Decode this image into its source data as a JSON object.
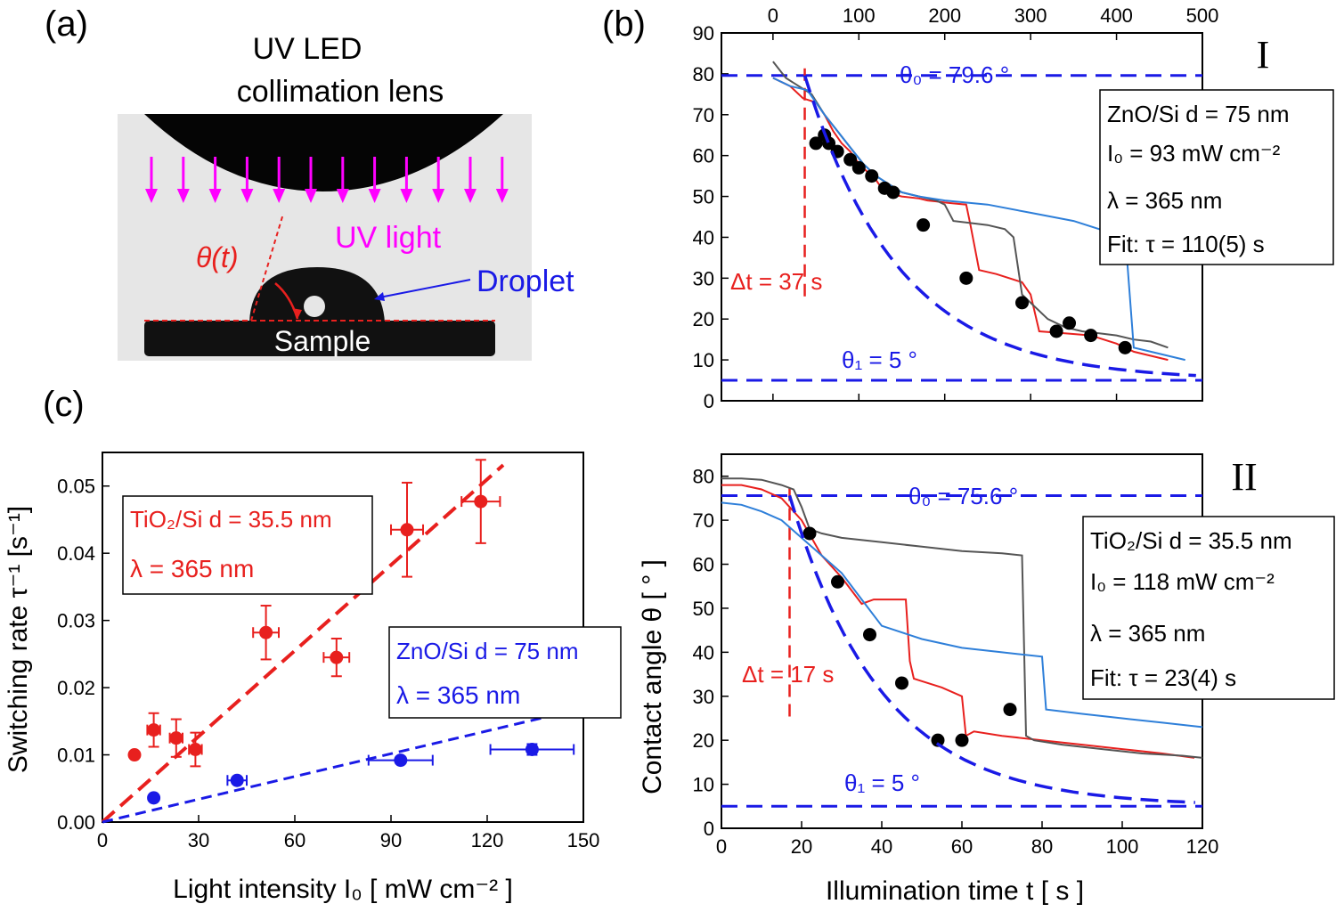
{
  "panel_labels": {
    "a": "(a)",
    "b": "(b)",
    "c": "(c)"
  },
  "colors": {
    "red": "#e8201e",
    "blue": "#1a1ae6",
    "gray": "#555555",
    "lightblue": "#2e7fd9",
    "magenta": "#ff00ff"
  },
  "panel_a": {
    "title_line1": "UV LED",
    "title_line2": "collimation lens",
    "uv_light": "UV light",
    "theta": "θ(t)",
    "droplet": "Droplet",
    "sample": "Sample"
  },
  "axes": {
    "b_ylabel": "Contact angle θ [ ° ]",
    "b_xlabel": "Illumination time t [ s ]",
    "c_ylabel": "Switching rate τ⁻¹ [s⁻¹]",
    "c_xlabel": "Light intensity I₀ [ mW cm⁻² ]"
  },
  "panel_b1": {
    "roman": "I",
    "theta0": "θ₀ = 79.6 °",
    "theta1": "θ₁ = 5 °",
    "delta_t": "Δt = 37 s",
    "legend": [
      "ZnO/Si d = 75 nm",
      "I₀ = 93 mW cm⁻²",
      "λ = 365 nm",
      "Fit:  τ = 110(5) s"
    ]
  },
  "panel_b2": {
    "roman": "II",
    "theta0": "θ₀ = 75.6 °",
    "theta1": "θ₁ = 5 °",
    "delta_t": "Δt = 17 s",
    "legend": [
      "TiO₂/Si d = 35.5 nm",
      "I₀ = 118 mW cm⁻²",
      "λ = 365 nm",
      "Fit:  τ = 23(4) s"
    ]
  },
  "panel_c": {
    "legend_red": [
      "TiO₂/Si d = 35.5 nm",
      "λ = 365 nm"
    ],
    "legend_blue": [
      "ZnO/Si d = 75 nm",
      "λ = 365 nm"
    ]
  },
  "chart_data": [
    {
      "id": "b1",
      "type": "line",
      "title": "I",
      "xlabel": "Illumination time t [ s ]",
      "ylabel": "Contact angle θ [ ° ]",
      "xlim": [
        -60,
        500
      ],
      "ylim": [
        0,
        90
      ],
      "xticks": [
        0,
        100,
        200,
        300,
        400,
        500
      ],
      "yticks": [
        0,
        10,
        20,
        30,
        40,
        50,
        60,
        70,
        80,
        90
      ],
      "theta0": 79.6,
      "theta1": 5,
      "delta_t": 37,
      "tau": 110,
      "series": [
        {
          "name": "red",
          "color": "#e8201e",
          "x": [
            0,
            20,
            35,
            50,
            60,
            70,
            80,
            90,
            100,
            110,
            120,
            130,
            150,
            170,
            180,
            190,
            200,
            210,
            225,
            230,
            240,
            260,
            290,
            300,
            310,
            340,
            370,
            400,
            420,
            440,
            460
          ],
          "y": [
            79,
            77,
            74,
            73,
            70,
            66,
            63,
            61,
            58,
            56,
            54,
            51,
            50,
            49.5,
            49,
            48.8,
            48.5,
            48.3,
            48,
            43,
            32,
            31,
            29,
            26,
            17,
            16.5,
            16,
            14,
            12,
            11,
            10
          ]
        },
        {
          "name": "gray",
          "color": "#555555",
          "x": [
            0,
            15,
            30,
            45,
            60,
            75,
            90,
            105,
            120,
            135,
            150,
            170,
            190,
            200,
            210,
            230,
            250,
            270,
            280,
            290,
            300,
            320,
            340,
            360,
            380,
            400,
            420,
            440,
            460
          ],
          "y": [
            83,
            79,
            77,
            75,
            70,
            66,
            62,
            58,
            55,
            53,
            51,
            50,
            49,
            48,
            44,
            43.5,
            43,
            42,
            40,
            26,
            24,
            20,
            18,
            17,
            16.5,
            16,
            15,
            14.5,
            13
          ]
        },
        {
          "name": "lightblue",
          "color": "#2e7fd9",
          "x": [
            0,
            20,
            40,
            50,
            60,
            75,
            90,
            105,
            120,
            135,
            150,
            170,
            200,
            250,
            300,
            350,
            380,
            400,
            410,
            420,
            440,
            460,
            480
          ],
          "y": [
            79,
            77,
            76,
            73,
            70,
            66,
            62,
            58,
            55,
            53,
            51,
            50,
            49,
            48,
            46,
            44,
            42,
            41,
            41,
            13,
            12,
            11,
            10
          ]
        },
        {
          "name": "points",
          "color": "#000000",
          "points": true,
          "x": [
            50,
            60,
            65,
            75,
            90,
            100,
            115,
            130,
            140,
            175,
            225,
            290,
            330,
            345,
            370,
            410
          ],
          "y": [
            63,
            65,
            63,
            61,
            59,
            57,
            55,
            52,
            51,
            43,
            30,
            24,
            17,
            19,
            16,
            13
          ]
        },
        {
          "name": "fit",
          "color": "#1a1ae6",
          "fit": true
        }
      ]
    },
    {
      "id": "b2",
      "type": "line",
      "title": "II",
      "xlabel": "Illumination time t [ s ]",
      "ylabel": "Contact angle θ [ ° ]",
      "xlim": [
        0,
        120
      ],
      "ylim": [
        0,
        85
      ],
      "xticks": [
        0,
        20,
        40,
        60,
        80,
        100,
        120
      ],
      "yticks": [
        0,
        10,
        20,
        30,
        40,
        50,
        60,
        70,
        80
      ],
      "theta0": 75.6,
      "theta1": 5,
      "delta_t": 17,
      "tau": 23,
      "series": [
        {
          "name": "red",
          "color": "#e8201e",
          "x": [
            0,
            5,
            10,
            15,
            20,
            25,
            30,
            35,
            38,
            42,
            46,
            47,
            48,
            55,
            60,
            61,
            63,
            70,
            80,
            90,
            100,
            110,
            118
          ],
          "y": [
            78,
            78,
            77,
            75,
            70,
            62,
            57,
            51,
            52,
            52,
            52,
            38,
            34,
            32,
            30,
            21,
            22,
            21,
            20,
            19,
            18,
            17,
            16
          ]
        },
        {
          "name": "gray",
          "color": "#555555",
          "x": [
            0,
            5,
            10,
            15,
            18,
            20,
            22,
            25,
            30,
            40,
            50,
            60,
            70,
            75,
            76,
            78,
            85,
            95,
            105,
            115,
            120
          ],
          "y": [
            79.5,
            79.5,
            79.2,
            78,
            77,
            73,
            68,
            67,
            66,
            65,
            64,
            63,
            62.5,
            62,
            21,
            20,
            19,
            18,
            17,
            16.5,
            16
          ]
        },
        {
          "name": "lightblue",
          "color": "#2e7fd9",
          "x": [
            0,
            5,
            10,
            15,
            20,
            25,
            30,
            35,
            40,
            50,
            60,
            70,
            80,
            81,
            90,
            100,
            110,
            120
          ],
          "y": [
            74,
            73.5,
            72,
            70,
            66,
            62,
            58,
            52,
            46,
            43,
            41,
            40,
            39,
            27,
            26,
            25,
            24,
            23
          ]
        },
        {
          "name": "points",
          "color": "#000000",
          "points": true,
          "x": [
            22,
            29,
            37,
            45,
            54,
            60,
            72
          ],
          "y": [
            67,
            56,
            44,
            33,
            20,
            20,
            27
          ]
        },
        {
          "name": "fit",
          "color": "#1a1ae6",
          "fit": true
        }
      ]
    },
    {
      "id": "c",
      "type": "scatter",
      "xlabel": "Light intensity I₀ [ mW cm⁻² ]",
      "ylabel": "Switching rate τ⁻¹ [s⁻¹]",
      "xlim": [
        0,
        150
      ],
      "ylim": [
        0,
        0.055
      ],
      "xticks": [
        0,
        30,
        60,
        90,
        120,
        150
      ],
      "yticks": [
        0.0,
        0.01,
        0.02,
        0.03,
        0.04,
        0.05
      ],
      "ytick_labels": [
        "0.00",
        "0.01",
        "0.02",
        "0.03",
        "0.04",
        "0.05"
      ],
      "series": [
        {
          "name": "TiO2/Si",
          "color": "#e8201e",
          "x": [
            10,
            16,
            23,
            29,
            51,
            73,
            95,
            118
          ],
          "y": [
            0.01,
            0.0137,
            0.0125,
            0.0108,
            0.0282,
            0.0245,
            0.0435,
            0.0477
          ],
          "xerr": [
            0,
            2,
            2,
            2,
            4,
            4,
            5,
            6
          ],
          "yerr": [
            0,
            0.0025,
            0.0028,
            0.0025,
            0.004,
            0.0028,
            0.007,
            0.0062
          ],
          "fit_slope": 0.000425
        },
        {
          "name": "ZnO/Si",
          "color": "#1a1ae6",
          "x": [
            16,
            42,
            93,
            134
          ],
          "y": [
            0.0036,
            0.0062,
            0.0092,
            0.0108
          ],
          "xerr": [
            0,
            3,
            10,
            13
          ],
          "yerr": [
            0,
            0,
            0,
            0.0008
          ],
          "fit_slope": 0.000113
        }
      ]
    }
  ]
}
